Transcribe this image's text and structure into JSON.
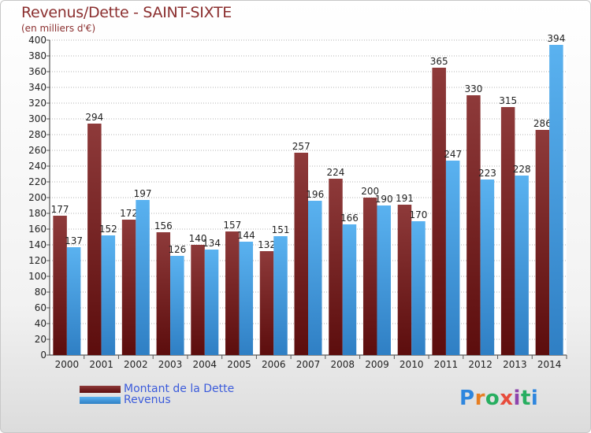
{
  "chart_data": {
    "type": "bar",
    "title": "Revenus/Dette - SAINT-SIXTE",
    "subtitle": "(en milliers d'€)",
    "categories": [
      "2000",
      "2001",
      "2002",
      "2003",
      "2004",
      "2005",
      "2006",
      "2007",
      "2008",
      "2009",
      "2010",
      "2011",
      "2012",
      "2013",
      "2014"
    ],
    "series": [
      {
        "name": "Montant de la Dette",
        "color": "#7a1f1f",
        "values": [
          177,
          294,
          172,
          156,
          140,
          157,
          132,
          257,
          224,
          200,
          191,
          365,
          330,
          315,
          286
        ]
      },
      {
        "name": "Revenus",
        "color": "#4aa3e6",
        "values": [
          137,
          152,
          197,
          126,
          134,
          144,
          151,
          196,
          166,
          190,
          170,
          247,
          223,
          228,
          394
        ]
      }
    ],
    "ylim": [
      0,
      400
    ],
    "ytick_step": 20,
    "grid": true,
    "legend_position": "bottom-left"
  },
  "logo": {
    "text": "Proxiti"
  }
}
